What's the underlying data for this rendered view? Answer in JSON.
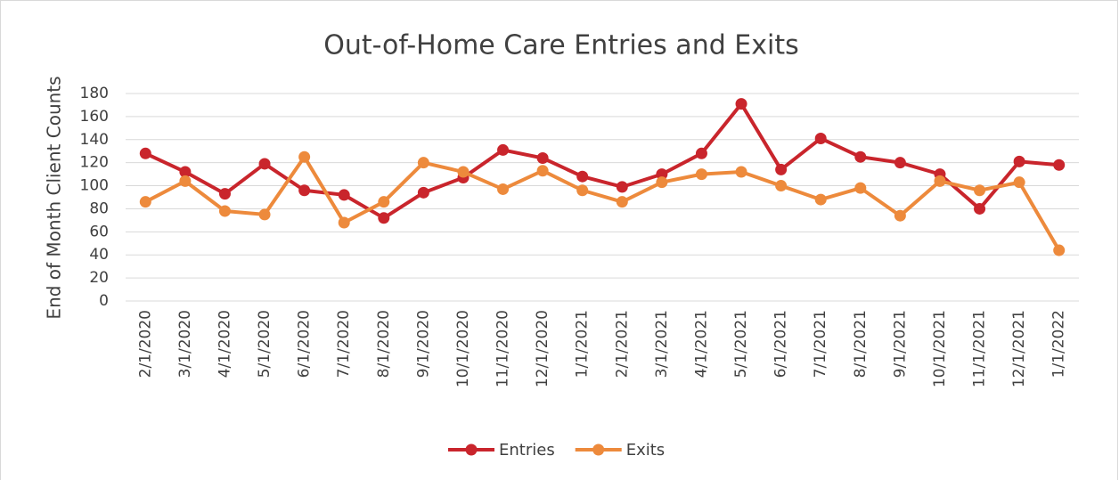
{
  "chart_data": {
    "type": "line",
    "title": "Out-of-Home Care Entries and Exits",
    "y_label": "End of Month Client Counts",
    "categories": [
      "2/1/2020",
      "3/1/2020",
      "4/1/2020",
      "5/1/2020",
      "6/1/2020",
      "7/1/2020",
      "8/1/2020",
      "9/1/2020",
      "10/1/2020",
      "11/1/2020",
      "12/1/2020",
      "1/1/2021",
      "2/1/2021",
      "3/1/2021",
      "4/1/2021",
      "5/1/2021",
      "6/1/2021",
      "7/1/2021",
      "8/1/2021",
      "9/1/2021",
      "10/1/2021",
      "11/1/2021",
      "12/1/2021",
      "1/1/2022"
    ],
    "series": [
      {
        "name": "Entries",
        "color": "#c9252c",
        "values": [
          128,
          112,
          93,
          119,
          96,
          92,
          72,
          94,
          107,
          131,
          124,
          108,
          99,
          110,
          128,
          171,
          114,
          141,
          125,
          120,
          110,
          80,
          121,
          118
        ]
      },
      {
        "name": "Exits",
        "color": "#ed8a3c",
        "values": [
          86,
          104,
          78,
          75,
          125,
          68,
          86,
          120,
          112,
          97,
          113,
          96,
          86,
          103,
          110,
          112,
          100,
          88,
          98,
          74,
          104,
          96,
          103,
          44
        ]
      }
    ],
    "ylim": [
      0,
      180
    ],
    "yticks": [
      0,
      20,
      40,
      60,
      80,
      100,
      120,
      140,
      160,
      180
    ],
    "grid": true,
    "legend": "bottom"
  }
}
